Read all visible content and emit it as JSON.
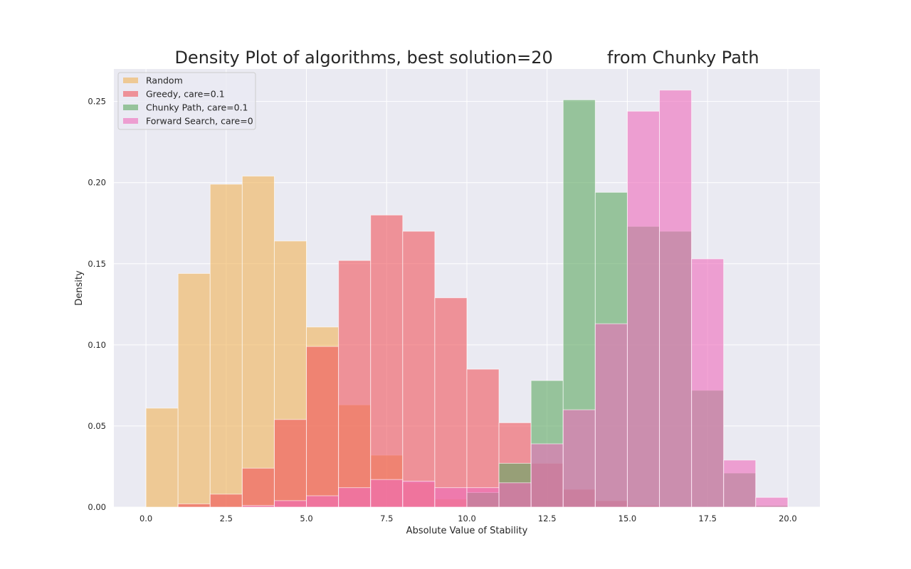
{
  "chart_data": {
    "type": "bar",
    "subtype": "overlaid-histogram",
    "title": "Density Plot of algorithms, best solution=20          from Chunky Path",
    "xlabel": "Absolute Value of Stability",
    "ylabel": "Density",
    "xlim": [
      -1,
      21
    ],
    "ylim": [
      0,
      0.27
    ],
    "xticks": [
      0.0,
      2.5,
      5.0,
      7.5,
      10.0,
      12.5,
      15.0,
      17.5,
      20.0
    ],
    "xtick_labels": [
      "0.0",
      "2.5",
      "5.0",
      "7.5",
      "10.0",
      "12.5",
      "15.0",
      "17.5",
      "20.0"
    ],
    "yticks": [
      0.0,
      0.05,
      0.1,
      0.15,
      0.2,
      0.25
    ],
    "ytick_labels": [
      "0.00",
      "0.05",
      "0.10",
      "0.15",
      "0.20",
      "0.25"
    ],
    "grid": true,
    "background": "#eaeaf2",
    "legend_position": "upper left",
    "bin_edges": [
      0,
      1,
      2,
      3,
      4,
      5,
      6,
      7,
      8,
      9,
      10,
      11,
      12,
      13,
      14,
      15,
      16,
      17,
      18,
      19,
      20
    ],
    "series": [
      {
        "name": "Random",
        "color": "#f0b356",
        "values": [
          0.061,
          0.144,
          0.199,
          0.204,
          0.164,
          0.111,
          0.063,
          0.032,
          0.015,
          0.005,
          0.001,
          0,
          0,
          0,
          0,
          0,
          0,
          0,
          0,
          0
        ]
      },
      {
        "name": "Greedy, care=0.1",
        "color": "#f0555c",
        "values": [
          0,
          0.002,
          0.008,
          0.024,
          0.054,
          0.099,
          0.152,
          0.18,
          0.17,
          0.129,
          0.085,
          0.052,
          0.027,
          0.011,
          0.004,
          0.001,
          0,
          0,
          0,
          0
        ]
      },
      {
        "name": "Chunky Path, care=0.1",
        "color": "#5da961",
        "values": [
          0,
          0,
          0,
          0,
          0,
          0,
          0,
          0,
          0,
          0,
          0.009,
          0.027,
          0.078,
          0.251,
          0.194,
          0.173,
          0.17,
          0.072,
          0.021,
          0.001
        ]
      },
      {
        "name": "Forward Search, care=0",
        "color": "#ef6bbb",
        "values": [
          0,
          0,
          0,
          0.001,
          0.004,
          0.007,
          0.012,
          0.017,
          0.016,
          0.012,
          0.012,
          0.015,
          0.039,
          0.06,
          0.113,
          0.244,
          0.257,
          0.153,
          0.029,
          0.006
        ]
      }
    ]
  }
}
